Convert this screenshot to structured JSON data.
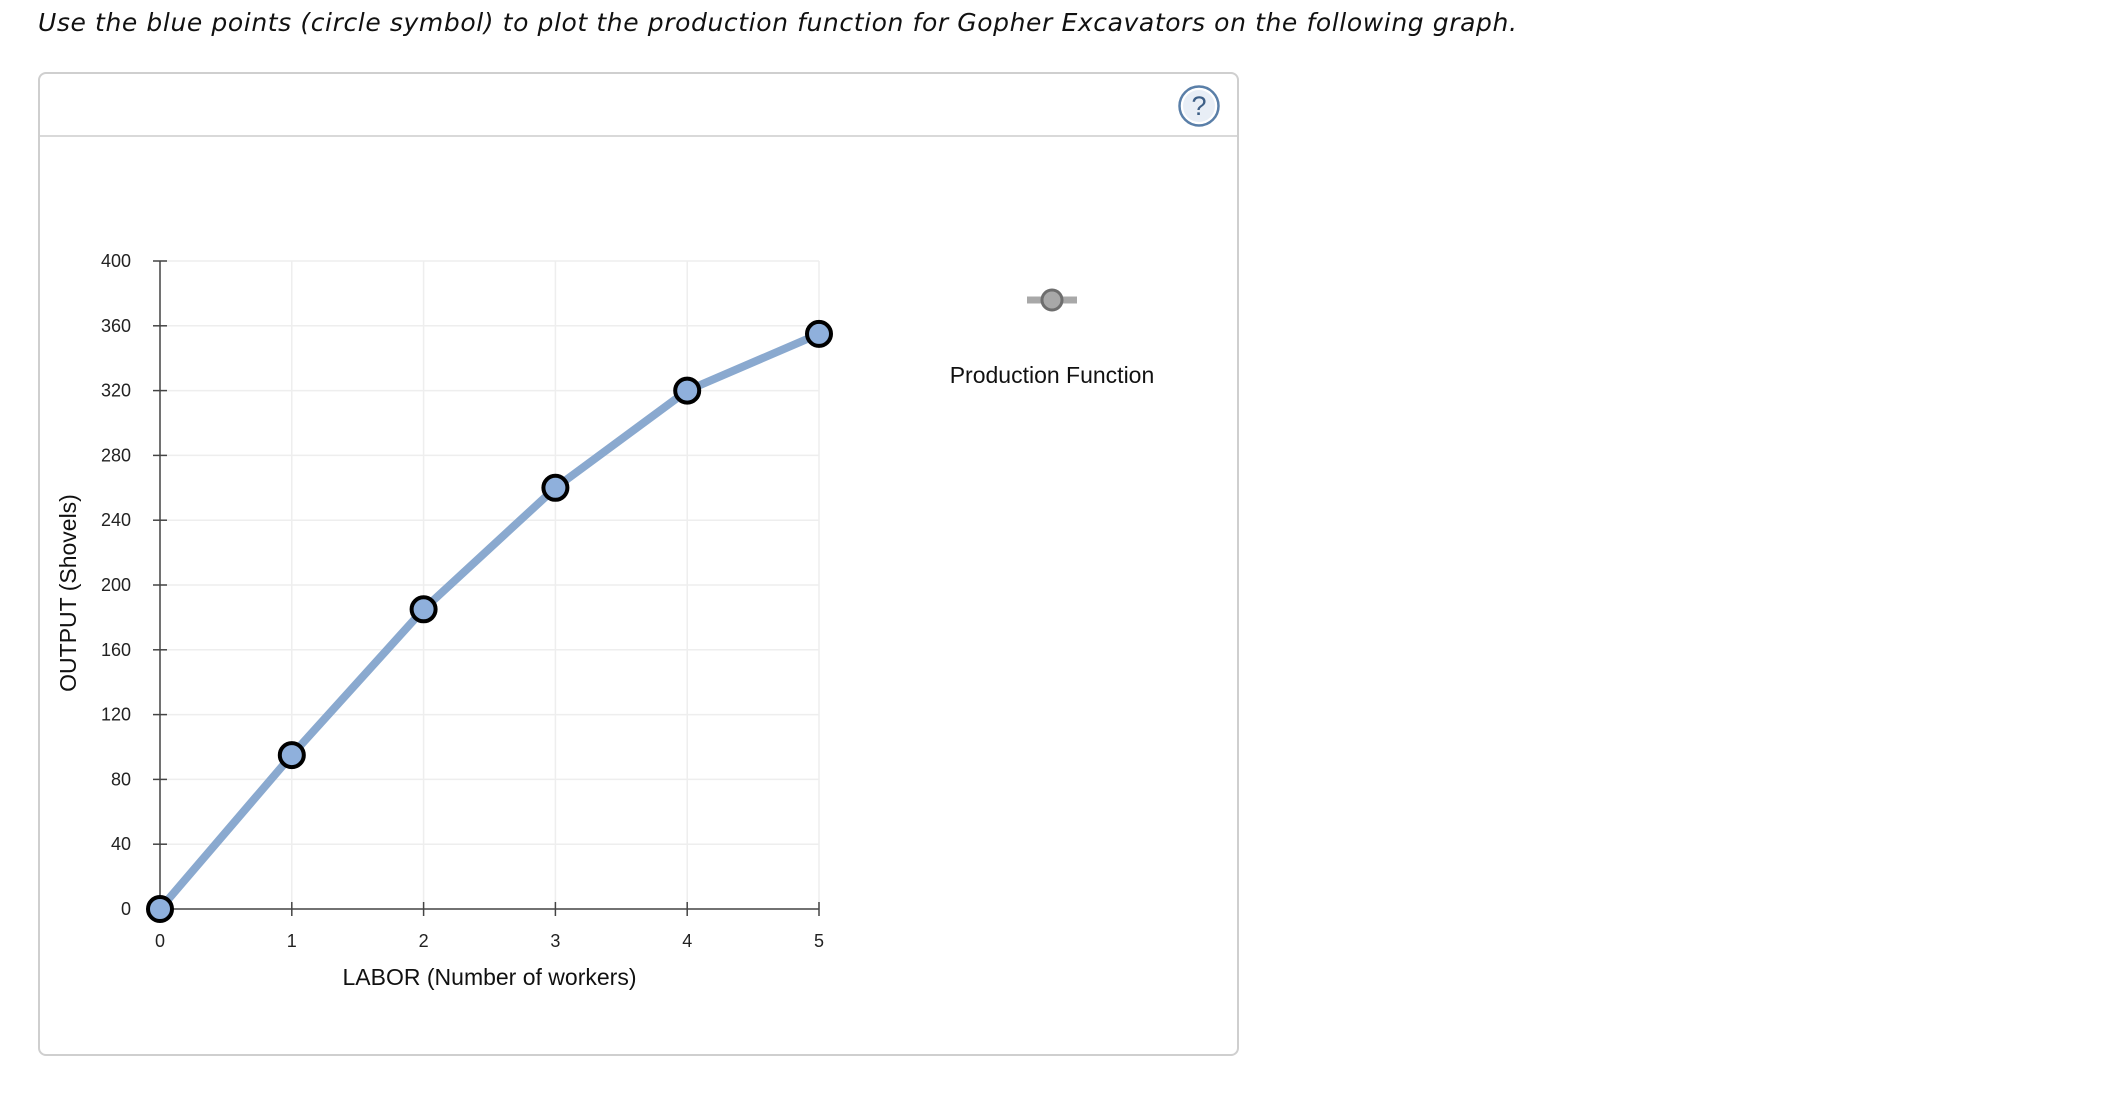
{
  "instruction": "Use the blue points (circle symbol) to plot the production function for Gopher Excavators on the following graph.",
  "help_icon": "question-mark-icon",
  "colors": {
    "line": "#8aa9cf",
    "point_fill": "#8fb0dc",
    "point_stroke": "#000000",
    "legend_marker": "#a8a8a8",
    "grid": "#eeeeee",
    "help": "#5a7fa8"
  },
  "chart_data": {
    "type": "line",
    "xlabel": "LABOR (Number of workers)",
    "ylabel": "OUTPUT (Shovels)",
    "xlim": [
      0,
      5
    ],
    "ylim": [
      0,
      400
    ],
    "x_ticks": [
      0,
      1,
      2,
      3,
      4,
      5
    ],
    "y_ticks": [
      0,
      40,
      80,
      120,
      160,
      200,
      240,
      280,
      320,
      360,
      400
    ],
    "grid": true,
    "legend_position": "right",
    "series": [
      {
        "name": "Production Function",
        "marker": "circle",
        "x": [
          0,
          1,
          2,
          3,
          4,
          5
        ],
        "y": [
          0,
          95,
          185,
          260,
          320,
          355
        ]
      }
    ]
  }
}
